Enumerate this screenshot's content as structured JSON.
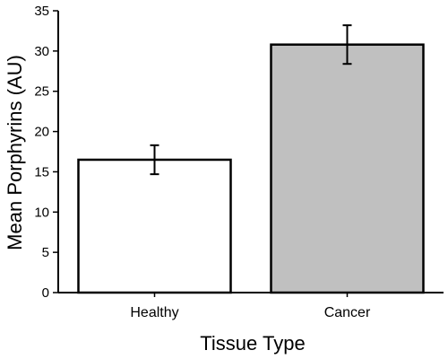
{
  "chart_data": {
    "type": "bar",
    "title": "",
    "xlabel": "Tissue Type",
    "ylabel": "Mean Porphyrins (AU)",
    "categories": [
      "Healthy",
      "Cancer"
    ],
    "values": [
      16.5,
      30.8
    ],
    "errors": [
      1.8,
      2.4
    ],
    "bar_colors": [
      "#ffffff",
      "#c0c0c0"
    ],
    "ylim": [
      0,
      35
    ],
    "yticks": [
      "0",
      "5",
      "10",
      "15",
      "20",
      "25",
      "30",
      "35"
    ],
    "grid": false
  }
}
